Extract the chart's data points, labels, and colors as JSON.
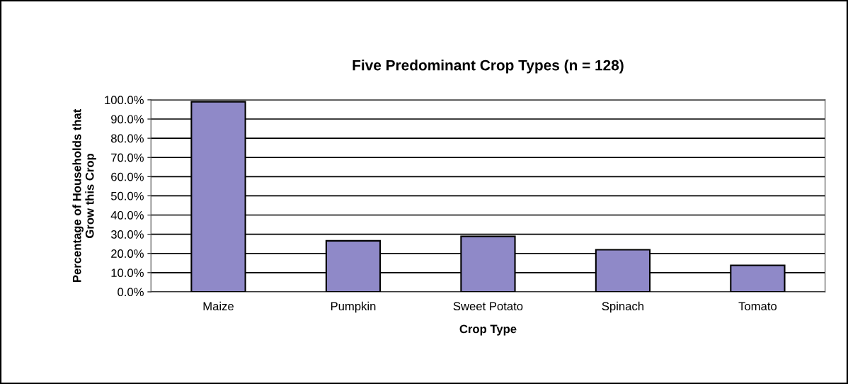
{
  "chart_data": {
    "type": "bar",
    "title": "Five Predominant Crop Types (n = 128)",
    "xlabel": "Crop Type",
    "ylabel": "Percentage of Households that\nGrow this Crop",
    "categories": [
      "Maize",
      "Pumpkin",
      "Sweet Potato",
      "Spinach",
      "Tomato"
    ],
    "values": [
      99.0,
      26.6,
      28.9,
      21.9,
      13.8
    ],
    "color": "#8f89c8",
    "ylim": [
      0,
      100
    ],
    "yticks": [
      {
        "value": 0,
        "label": "0.0%"
      },
      {
        "value": 10,
        "label": "10.0%"
      },
      {
        "value": 20,
        "label": "20.0%"
      },
      {
        "value": 30,
        "label": "30.0%"
      },
      {
        "value": 40,
        "label": "40.0%"
      },
      {
        "value": 50,
        "label": "50.0%"
      },
      {
        "value": 60,
        "label": "60.0%"
      },
      {
        "value": 70,
        "label": "70.0%"
      },
      {
        "value": 80,
        "label": "80.0%"
      },
      {
        "value": 90,
        "label": "90.0%"
      },
      {
        "value": 100,
        "label": "100.0%"
      }
    ],
    "grid": "y"
  }
}
